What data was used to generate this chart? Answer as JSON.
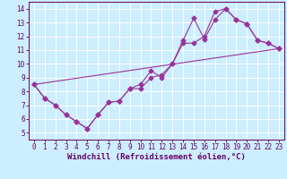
{
  "xlabel": "Windchill (Refroidissement éolien,°C)",
  "xlim": [
    -0.5,
    23.5
  ],
  "ylim": [
    4.5,
    14.5
  ],
  "xticks": [
    0,
    1,
    2,
    3,
    4,
    5,
    6,
    7,
    8,
    9,
    10,
    11,
    12,
    13,
    14,
    15,
    16,
    17,
    18,
    19,
    20,
    21,
    22,
    23
  ],
  "yticks": [
    5,
    6,
    7,
    8,
    9,
    10,
    11,
    12,
    13,
    14
  ],
  "bg_color": "#cceeff",
  "line_color": "#993399",
  "grid_color": "#aaddcc",
  "line1_x": [
    0,
    1,
    2,
    3,
    4,
    5,
    6,
    7,
    8,
    9,
    10,
    11,
    12,
    13,
    14,
    15,
    16,
    17,
    18,
    19,
    20,
    21,
    22,
    23
  ],
  "line1_y": [
    8.5,
    7.5,
    7.0,
    6.3,
    5.8,
    5.3,
    6.3,
    7.2,
    7.3,
    8.2,
    8.2,
    9.0,
    9.2,
    10.0,
    11.5,
    11.5,
    12.0,
    13.8,
    14.0,
    13.2,
    12.9,
    11.7,
    11.5,
    11.1
  ],
  "line2_x": [
    0,
    1,
    2,
    3,
    4,
    5,
    6,
    7,
    8,
    9,
    10,
    11,
    12,
    13,
    14,
    15,
    16,
    17,
    18,
    19,
    20,
    21,
    22,
    23
  ],
  "line2_y": [
    8.5,
    7.5,
    7.0,
    6.3,
    5.8,
    5.3,
    6.3,
    7.2,
    7.3,
    8.2,
    8.5,
    9.5,
    9.0,
    10.0,
    11.7,
    13.3,
    11.8,
    13.2,
    14.0,
    13.2,
    12.9,
    11.7,
    11.5,
    11.1
  ],
  "line3_x": [
    0,
    23
  ],
  "line3_y": [
    8.5,
    11.1
  ],
  "marker": "D",
  "markersize": 2.5,
  "linewidth": 0.8,
  "tick_fontsize": 5.5,
  "xlabel_fontsize": 6.5
}
